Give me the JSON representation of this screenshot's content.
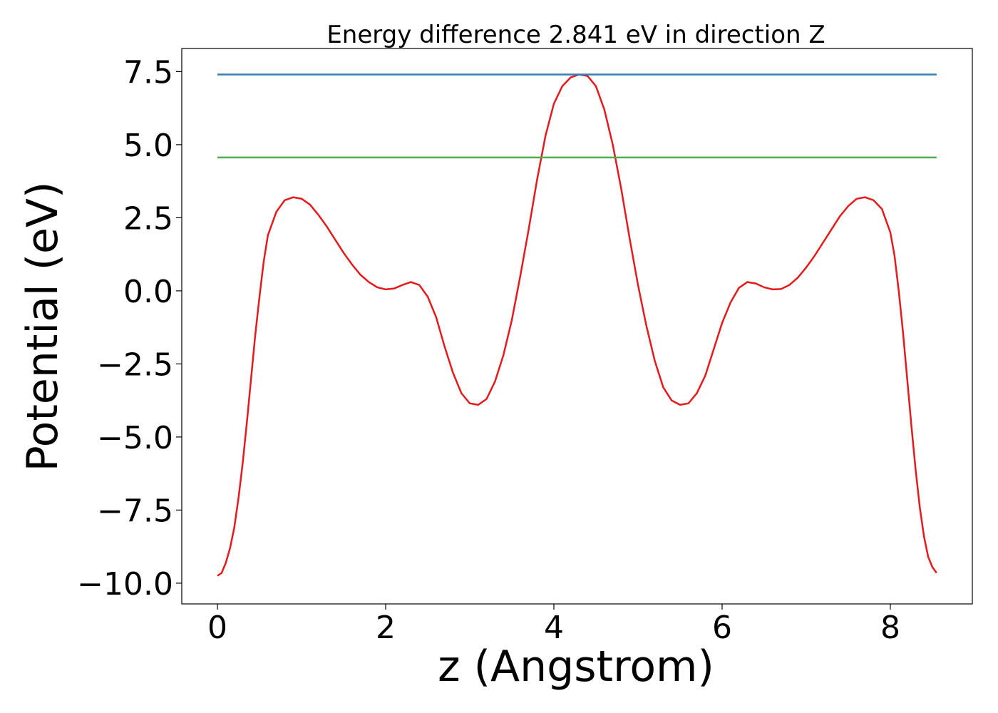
{
  "chart_data": {
    "type": "line",
    "title": "Energy difference 2.841 eV in direction Z",
    "xlabel": "z (Angstrom)",
    "ylabel": "Potential (eV)",
    "xlim": [
      -0.424,
      8.975
    ],
    "ylim": [
      -10.71,
      8.29
    ],
    "xticks": [
      0,
      2,
      4,
      6,
      8
    ],
    "yticks": [
      {
        "value": -10,
        "label": "−10.0"
      },
      {
        "value": -7.5,
        "label": "−7.5"
      },
      {
        "value": -5,
        "label": "−5.0"
      },
      {
        "value": -2.5,
        "label": "−2.5"
      },
      {
        "value": 0,
        "label": "0.0"
      },
      2.5,
      {
        "value": 5,
        "label": "5.0"
      },
      7.5
    ],
    "series": [
      {
        "color": "#e41a1c",
        "x": [
          0,
          0.05,
          0.1,
          0.15,
          0.2,
          0.25,
          0.3,
          0.35,
          0.4,
          0.45,
          0.5,
          0.55,
          0.6,
          0.7,
          0.8,
          0.9,
          1.0,
          1.1,
          1.2,
          1.3,
          1.4,
          1.5,
          1.6,
          1.7,
          1.8,
          1.9,
          2.0,
          2.1,
          2.2,
          2.3,
          2.4,
          2.5,
          2.6,
          2.7,
          2.8,
          2.9,
          3.0,
          3.1,
          3.2,
          3.3,
          3.4,
          3.5,
          3.6,
          3.7,
          3.8,
          3.9,
          4.0,
          4.1,
          4.2,
          4.3,
          4.4,
          4.5,
          4.6,
          4.7,
          4.8,
          4.9,
          5.0,
          5.1,
          5.2,
          5.3,
          5.4,
          5.5,
          5.6,
          5.7,
          5.8,
          5.9,
          6.0,
          6.1,
          6.2,
          6.3,
          6.4,
          6.5,
          6.6,
          6.7,
          6.8,
          6.9,
          7.0,
          7.1,
          7.2,
          7.3,
          7.4,
          7.5,
          7.6,
          7.7,
          7.8,
          7.9,
          8.0,
          8.05,
          8.1,
          8.15,
          8.2,
          8.25,
          8.3,
          8.35,
          8.4,
          8.45,
          8.5,
          8.55
        ],
        "values": [
          -9.75,
          -9.65,
          -9.3,
          -8.8,
          -8.1,
          -7.1,
          -5.9,
          -4.5,
          -3.0,
          -1.5,
          -0.2,
          1.0,
          1.9,
          2.7,
          3.1,
          3.2,
          3.15,
          2.95,
          2.6,
          2.2,
          1.75,
          1.3,
          0.9,
          0.55,
          0.3,
          0.12,
          0.05,
          0.08,
          0.2,
          0.3,
          0.2,
          -0.2,
          -0.9,
          -1.9,
          -2.8,
          -3.5,
          -3.85,
          -3.9,
          -3.7,
          -3.1,
          -2.2,
          -1.0,
          0.5,
          2.1,
          3.8,
          5.3,
          6.4,
          7.0,
          7.3,
          7.4,
          7.35,
          7.0,
          6.2,
          5.0,
          3.5,
          1.8,
          0.2,
          -1.2,
          -2.4,
          -3.3,
          -3.75,
          -3.9,
          -3.85,
          -3.5,
          -2.9,
          -2.0,
          -1.1,
          -0.4,
          0.1,
          0.3,
          0.25,
          0.12,
          0.05,
          0.06,
          0.2,
          0.45,
          0.8,
          1.2,
          1.65,
          2.1,
          2.55,
          2.9,
          3.15,
          3.2,
          3.1,
          2.8,
          2.0,
          1.2,
          0.0,
          -1.4,
          -3.0,
          -4.6,
          -6.1,
          -7.4,
          -8.4,
          -9.1,
          -9.45,
          -9.65
        ]
      },
      {
        "color": "#377eb8",
        "x": [
          0,
          8.55
        ],
        "values": [
          7.4,
          7.4
        ]
      },
      {
        "color": "#4daf4a",
        "x": [
          0,
          8.55
        ],
        "values": [
          4.56,
          4.56
        ]
      }
    ]
  }
}
